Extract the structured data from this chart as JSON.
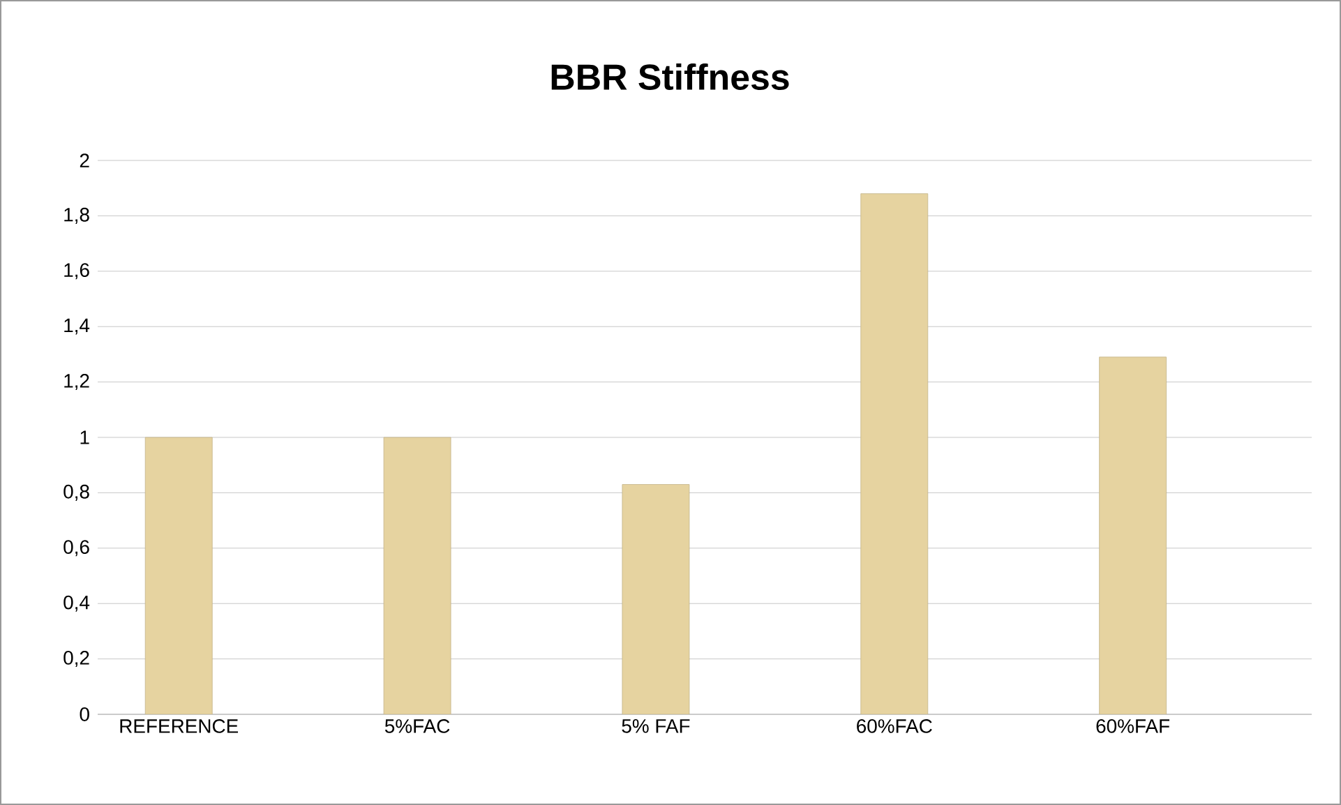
{
  "chart_data": {
    "type": "bar",
    "title": "BBR Stiffness",
    "categories": [
      "REFERENCE",
      "5%FAC",
      "5% FAF",
      "60%FAC",
      "60%FAF"
    ],
    "values": [
      1.0,
      1.0,
      0.83,
      1.88,
      1.29
    ],
    "color": "#e6d3a0",
    "ylim": [
      0,
      2
    ],
    "yticks": [
      0,
      {
        "value": 0.2,
        "label": "0,2"
      },
      {
        "value": 0.4,
        "label": "0,4"
      },
      {
        "value": 0.6,
        "label": "0,6"
      },
      {
        "value": 0.8,
        "label": "0,8"
      },
      1,
      {
        "value": 1.2,
        "label": "1,2"
      },
      {
        "value": 1.4,
        "label": "1,4"
      },
      {
        "value": 1.6,
        "label": "1,6"
      },
      {
        "value": 1.8,
        "label": "1,8"
      },
      2
    ],
    "grid": "y"
  }
}
